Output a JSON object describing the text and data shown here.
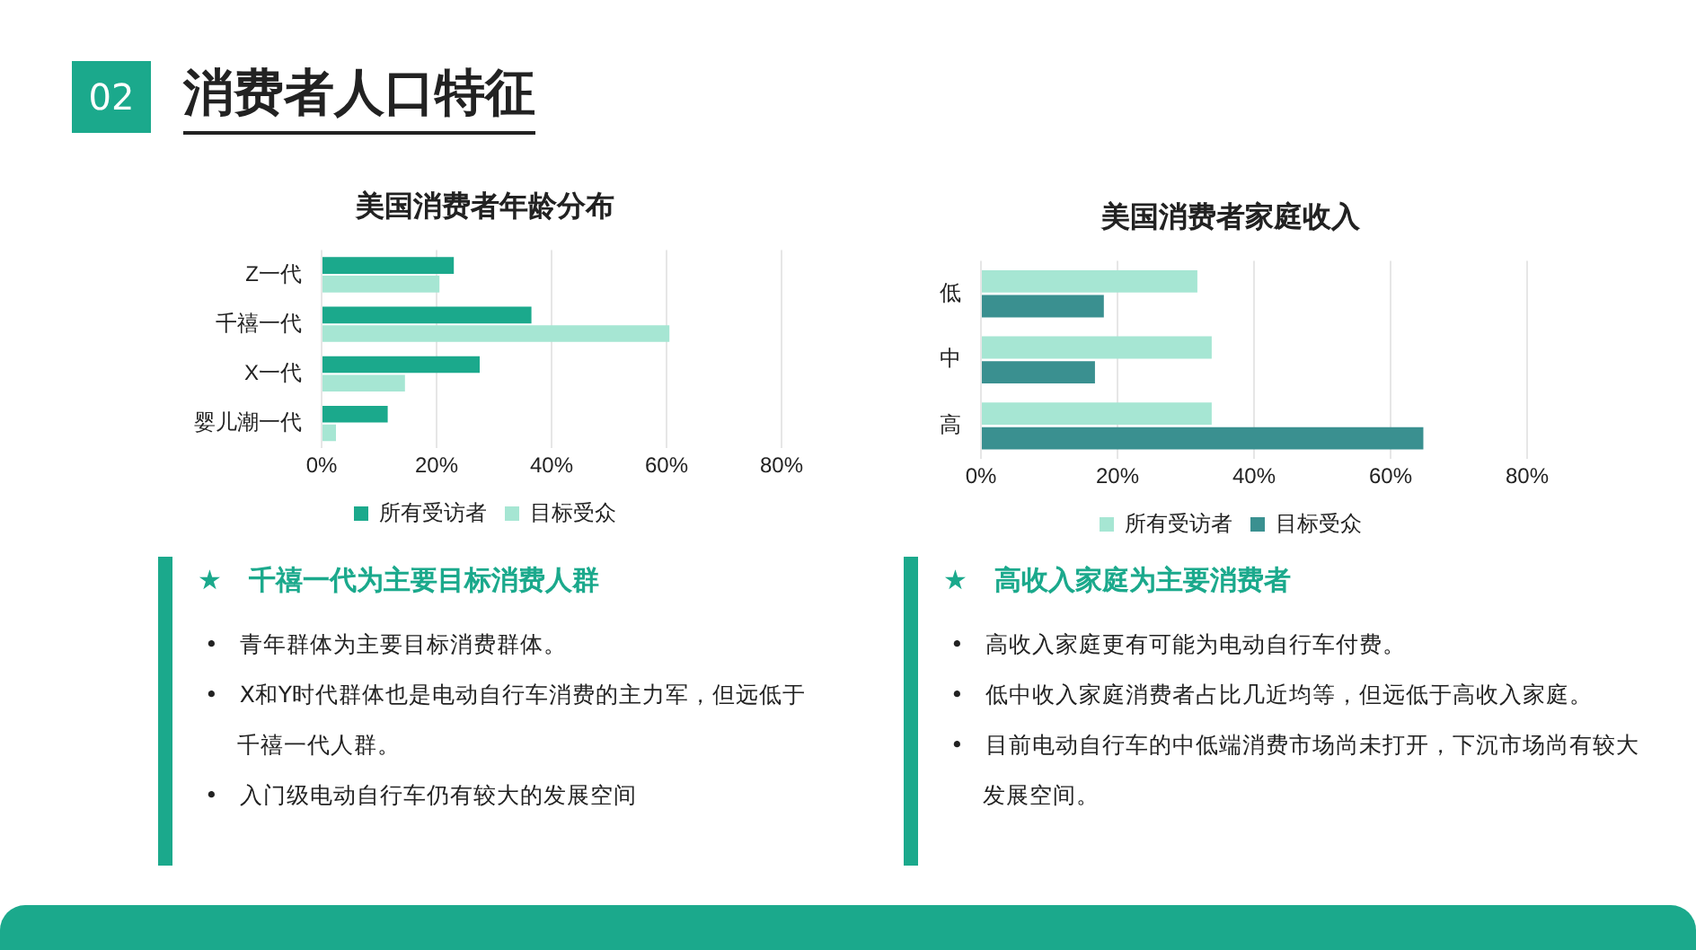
{
  "chart_data": [
    {
      "type": "other",
      "title": "消费者人口特征",
      "annotations": [
        "02"
      ]
    },
    {
      "type": "bar",
      "orientation": "horizontal",
      "title": "美国消费者年龄分布",
      "categories": [
        "Z一代",
        "千禧一代",
        "X一代",
        "婴儿潮一代"
      ],
      "series": [
        {
          "name": "所有受访者",
          "color": "#1ba98c",
          "values": [
            23,
            36.5,
            27.5,
            11.5
          ]
        },
        {
          "name": "目标受众",
          "color": "#a6e6d3",
          "values": [
            20.5,
            60.5,
            14.5,
            2.5
          ]
        }
      ],
      "xlim": [
        0,
        80
      ],
      "xticks": [
        {
          "value": 0,
          "label": "0%"
        },
        {
          "value": 20,
          "label": "20%"
        },
        {
          "value": 40,
          "label": "40%"
        },
        {
          "value": 60,
          "label": "60%"
        },
        {
          "value": 80,
          "label": "80%"
        }
      ],
      "grid": "x",
      "legend": "bottom"
    },
    {
      "type": "bar",
      "orientation": "horizontal",
      "title": "美国消费者家庭收入",
      "categories": [
        "低",
        "中",
        "高"
      ],
      "series": [
        {
          "name": "所有受访者",
          "color": "#a6e6d3",
          "values": [
            31.7,
            33.8,
            33.8
          ]
        },
        {
          "name": "目标受众",
          "color": "#3a9090",
          "values": [
            18,
            16.7,
            64.8
          ]
        }
      ],
      "xlim": [
        0,
        80
      ],
      "xticks": [
        {
          "value": 0,
          "label": "0%"
        },
        {
          "value": 20,
          "label": "20%"
        },
        {
          "value": 40,
          "label": "40%"
        },
        {
          "value": 60,
          "label": "60%"
        },
        {
          "value": 80,
          "label": "80%"
        }
      ],
      "grid": "x",
      "legend": "bottom"
    },
    {
      "type": "other",
      "title": "★ 千禧一代为主要目标消费人群",
      "annotations": [
        "• 青年群体为主要目标消费群体。",
        "• X和Y时代群体也是电动自行车消费的主力军，但远低于千禧一代人群。",
        "• 入门级电动自行车仍有较大的发展空间"
      ]
    },
    {
      "type": "other",
      "title": "★ 高收入家庭为主要消费者",
      "annotations": [
        "• 高收入家庭更有可能为电动自行车付费。",
        "• 低中收入家庭消费者占比几近均等，但远低于高收入家庭。",
        "• 目前电动自行车的中低端消费市场尚未打开，下沉市场尚有较大发展空间。"
      ]
    }
  ]
}
